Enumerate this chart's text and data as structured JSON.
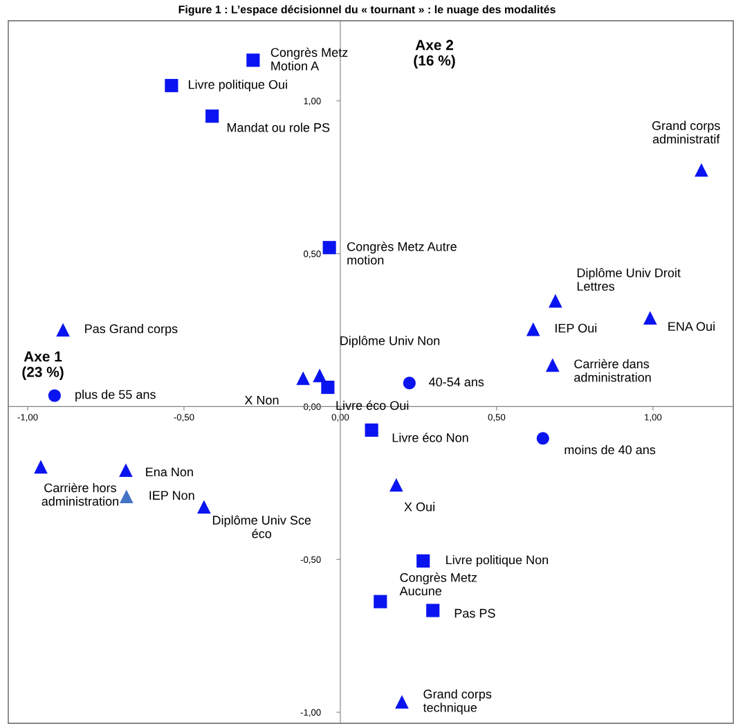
{
  "chart_data": {
    "type": "scatter",
    "title": "Figure 1 : L’espace décisionnel du « tournant » : le nuage des modalités",
    "xlabel": "Axe 1\n(23 %)",
    "ylabel": "Axe 2\n(16 %)",
    "series": [
      {
        "marker": "square",
        "color": "#0a14f0",
        "x": [
          -0.279,
          -0.54,
          -0.41,
          -0.035,
          -0.04,
          0.1,
          0.265,
          0.128,
          0.296
        ],
        "values": [
          1.133,
          1.05,
          0.95,
          0.52,
          0.063,
          -0.077,
          -0.505,
          -0.638,
          -0.667
        ]
      },
      {
        "marker": "circle",
        "color": "#0a14f0",
        "x": [
          -0.914,
          0.221,
          0.648
        ],
        "values": [
          0.036,
          0.077,
          -0.104
        ]
      },
      {
        "marker": "triangle",
        "colors": [
          "#0a14f0",
          "#0a14f0",
          "#0a14f0",
          "#0a14f0",
          "#0a14f0",
          "#0a14f0",
          "#0a14f0",
          "#0a14f0",
          "#0a14f0",
          "#0a14f0",
          "#4472c4",
          "#0a14f0",
          "#0a14f0",
          "#0a14f0"
        ],
        "x": [
          1.155,
          0.688,
          0.991,
          0.617,
          0.679,
          -0.887,
          -0.066,
          -0.119,
          -0.958,
          -0.686,
          -0.684,
          -0.436,
          0.179,
          0.197
        ],
        "values": [
          0.774,
          0.346,
          0.29,
          0.253,
          0.136,
          0.251,
          0.102,
          0.093,
          -0.197,
          -0.208,
          -0.294,
          -0.328,
          -0.256,
          -0.966
        ]
      }
    ],
    "annotations": [
      {
        "text": "Congrès Metz\nMotion A",
        "x": -0.279,
        "y": 1.133
      },
      {
        "text": "Livre politique Oui",
        "x": -0.54,
        "y": 1.05
      },
      {
        "text": "Mandat ou role PS",
        "x": -0.41,
        "y": 0.95
      },
      {
        "text": "Congrès Metz Autre\nmotion",
        "x": -0.035,
        "y": 0.52
      },
      {
        "text": "Livre éco Oui",
        "x": -0.04,
        "y": 0.063
      },
      {
        "text": "Livre éco Non",
        "x": 0.1,
        "y": -0.077
      },
      {
        "text": "Livre politique Non",
        "x": 0.265,
        "y": -0.505
      },
      {
        "text": "Congrès Metz\nAucune",
        "x": 0.128,
        "y": -0.638
      },
      {
        "text": "Pas PS",
        "x": 0.296,
        "y": -0.667
      },
      {
        "text": "plus de 55 ans",
        "x": -0.914,
        "y": 0.036
      },
      {
        "text": "40-54 ans",
        "x": 0.221,
        "y": 0.077
      },
      {
        "text": "moins de 40 ans",
        "x": 0.648,
        "y": -0.104
      },
      {
        "text": "Grand corps\nadministratif",
        "x": 1.155,
        "y": 0.774
      },
      {
        "text": "Diplôme Univ Droit\nLettres",
        "x": 0.688,
        "y": 0.346
      },
      {
        "text": "ENA Oui",
        "x": 0.991,
        "y": 0.29
      },
      {
        "text": "IEP Oui",
        "x": 0.617,
        "y": 0.253
      },
      {
        "text": "Carrière dans\nadministration",
        "x": 0.679,
        "y": 0.136
      },
      {
        "text": "Pas Grand corps",
        "x": -0.887,
        "y": 0.251
      },
      {
        "text": "Diplôme Univ Non",
        "x": -0.066,
        "y": 0.102
      },
      {
        "text": "X Non",
        "x": -0.119,
        "y": 0.093
      },
      {
        "text": "Carrière hors\nadministration",
        "x": -0.958,
        "y": -0.197
      },
      {
        "text": "Ena Non",
        "x": -0.686,
        "y": -0.208
      },
      {
        "text": "IEP Non",
        "x": -0.684,
        "y": -0.294
      },
      {
        "text": "Diplôme Univ Sce\néco",
        "x": -0.436,
        "y": -0.328
      },
      {
        "text": "X Oui",
        "x": 0.179,
        "y": -0.256
      },
      {
        "text": "Grand corps\ntechnique",
        "x": 0.197,
        "y": -0.966
      }
    ],
    "xlim": [
      -1.062,
      1.257
    ],
    "ylim": [
      -1.036,
      1.262
    ],
    "xticks": [
      {
        "value": -1,
        "label": "-1,00"
      },
      {
        "value": -0.5,
        "label": "-0,50"
      },
      {
        "value": 0,
        "label": "0,00"
      },
      {
        "value": 0.5,
        "label": "0,50"
      },
      {
        "value": 1,
        "label": "1,00"
      }
    ],
    "yticks": [
      {
        "value": -1,
        "label": "-1,00"
      },
      {
        "value": -0.5,
        "label": "-0,50"
      },
      {
        "value": 0,
        "label": "0,00"
      },
      {
        "value": 0.5,
        "label": "0,50"
      },
      {
        "value": 1,
        "label": "1,00"
      }
    ],
    "grid": false,
    "legend": false
  }
}
